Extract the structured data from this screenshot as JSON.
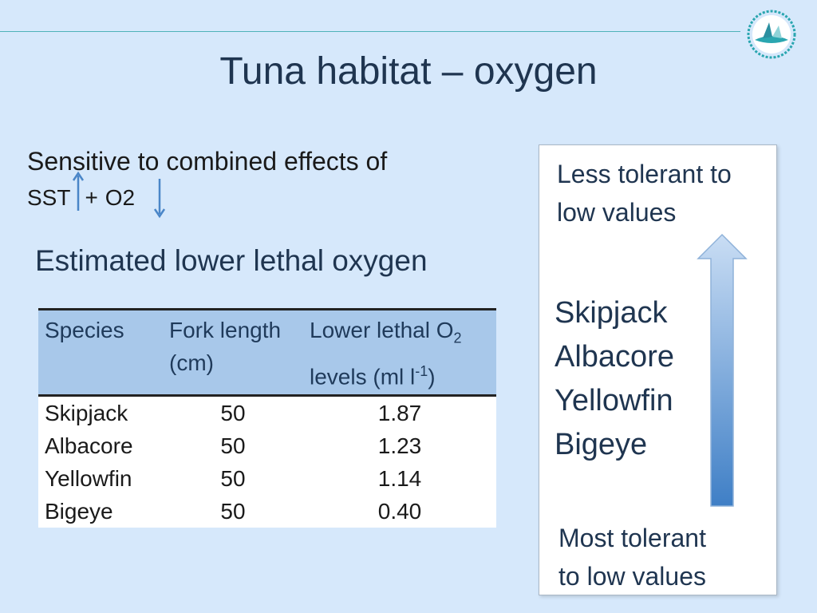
{
  "title": "Tuna habitat – oxygen",
  "intro": {
    "line1": "Sensitive to combined effects of",
    "sst": "SST",
    "plus": "+",
    "o2": "O2"
  },
  "subtitle": "Estimated lower lethal oxygen",
  "table": {
    "headers": {
      "species": "Species",
      "fork_line1": "Fork length",
      "fork_line2": "(cm)",
      "lethal_line1": "Lower lethal O",
      "lethal_sub": "2",
      "lethal_line2_a": "levels (ml l",
      "lethal_sup": "-1",
      "lethal_line2_b": ")"
    },
    "rows": [
      {
        "species": "Skipjack",
        "fork": "50",
        "lethal": "1.87"
      },
      {
        "species": "Albacore",
        "fork": "50",
        "lethal": "1.23"
      },
      {
        "species": "Yellowfin",
        "fork": "50",
        "lethal": "1.14"
      },
      {
        "species": "Bigeye",
        "fork": "50",
        "lethal": "0.40"
      }
    ]
  },
  "tolerance": {
    "top_line1": "Less tolerant to",
    "top_line2": "low values",
    "species": [
      "Skipjack",
      "Albacore",
      "Yellowfin",
      "Bigeye"
    ],
    "bottom_line1": "Most tolerant",
    "bottom_line2": "to low values"
  },
  "colors": {
    "title": "#1f3550",
    "header_bg": "#a8c8ea",
    "arrow": "#4a86c8",
    "teal": "#4fb3b9"
  }
}
